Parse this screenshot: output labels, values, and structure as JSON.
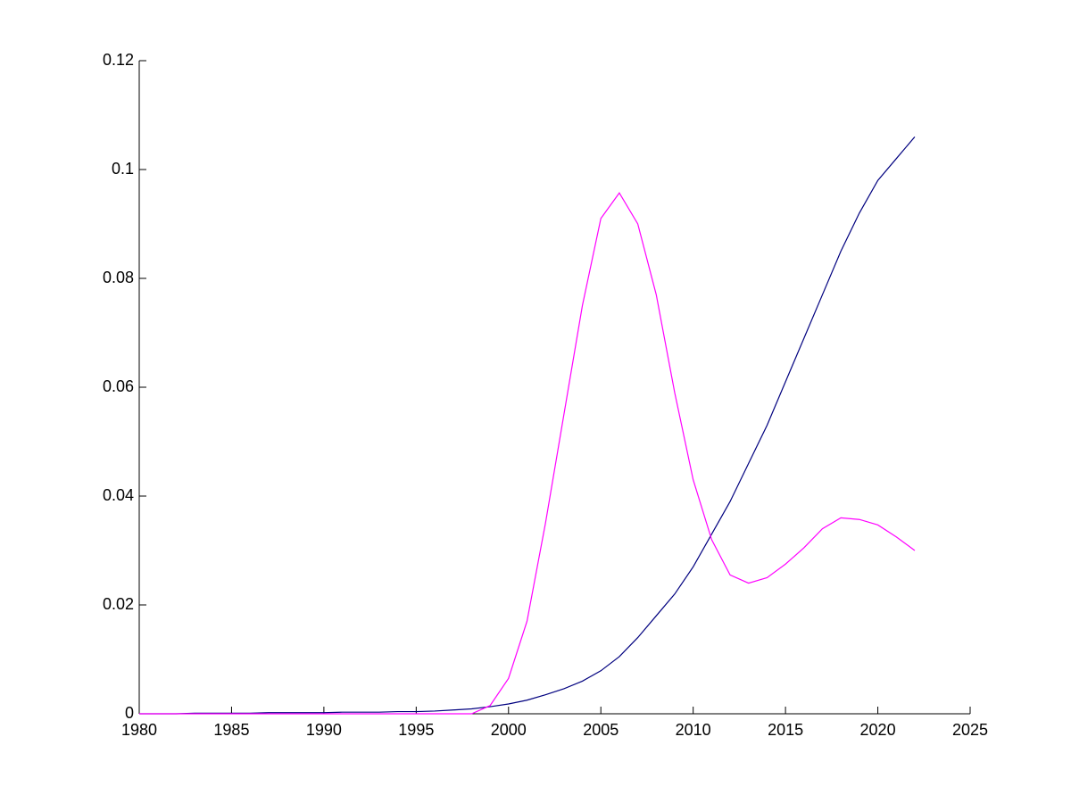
{
  "chart_data": {
    "type": "line",
    "x": [
      1980,
      1981,
      1982,
      1983,
      1984,
      1985,
      1986,
      1987,
      1988,
      1989,
      1990,
      1991,
      1992,
      1993,
      1994,
      1995,
      1996,
      1997,
      1998,
      1999,
      2000,
      2001,
      2002,
      2003,
      2004,
      2005,
      2006,
      2007,
      2008,
      2009,
      2010,
      2011,
      2012,
      2013,
      2014,
      2015,
      2016,
      2017,
      2018,
      2019,
      2020,
      2021,
      2022
    ],
    "series": [
      {
        "color": "#00007f",
        "values": [
          0,
          0,
          0,
          0.0001,
          0.0001,
          0.0001,
          0.0001,
          0.0002,
          0.0002,
          0.0002,
          0.0002,
          0.0003,
          0.0003,
          0.0003,
          0.0004,
          0.0004,
          0.0005,
          0.0007,
          0.0009,
          0.0013,
          0.0018,
          0.0025,
          0.0035,
          0.0046,
          0.006,
          0.0079,
          0.0105,
          0.014,
          0.018,
          0.022,
          0.027,
          0.033,
          0.039,
          0.046,
          0.053,
          0.061,
          0.069,
          0.077,
          0.085,
          0.092,
          0.098,
          0.102,
          0.106
        ]
      },
      {
        "color": "#ff00ff",
        "values": [
          0,
          0,
          0,
          0,
          0,
          0,
          0,
          0,
          0,
          0,
          0,
          0,
          0,
          0,
          0,
          0,
          0,
          0,
          0,
          0.0015,
          0.0065,
          0.017,
          0.035,
          0.055,
          0.075,
          0.091,
          0.0957,
          0.09,
          0.077,
          0.059,
          0.043,
          0.032,
          0.0255,
          0.024,
          0.025,
          0.0275,
          0.0305,
          0.034,
          0.036,
          0.0357,
          0.0347,
          0.0325,
          0.03
        ]
      }
    ],
    "xlim": [
      1980,
      2025
    ],
    "xticks": [
      1980,
      1985,
      1990,
      1995,
      2000,
      2005,
      2010,
      2015,
      2020,
      2025
    ],
    "ylim": [
      0,
      0.12
    ],
    "yticks": [
      0,
      0.02,
      0.04,
      0.06,
      0.08,
      0.1,
      0.12
    ]
  }
}
